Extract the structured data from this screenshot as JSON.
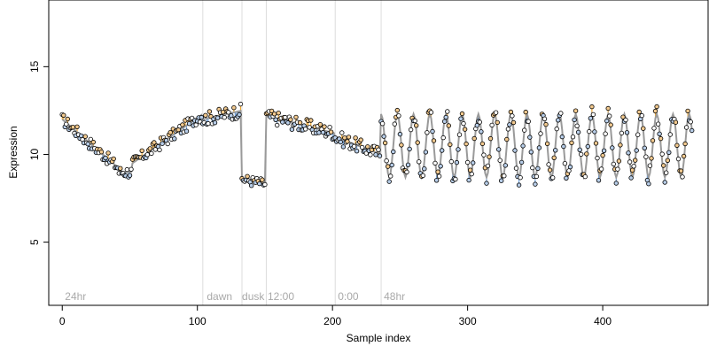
{
  "chart_data": {
    "type": "scatter",
    "title": "",
    "xlabel": "Sample index",
    "ylabel": "Expression",
    "xlim": [
      -10,
      478
    ],
    "ylim": [
      1.4,
      18.8
    ],
    "x_ticks": [
      0,
      100,
      200,
      300,
      400
    ],
    "y_ticks": [
      5,
      10,
      15
    ],
    "grid": false,
    "legend": "none",
    "colors": {
      "points_fill": "#ffffff",
      "points_stroke": "#000000",
      "points_above_fill": "#f2c98e",
      "points_below_fill": "#b7cde8",
      "trend_line": "#9a9a9a",
      "bar_above": "#f0a830",
      "bar_below": "#6f9fd8",
      "annotation": "#a9a9a9",
      "vline": "#dddddd"
    },
    "vlines": [
      104,
      133,
      151,
      202,
      236
    ],
    "annotations": [
      {
        "x": 2,
        "label": "24hr"
      },
      {
        "x": 107,
        "label": "dawn"
      },
      {
        "x": 133,
        "label": "dusk"
      },
      {
        "x": 152,
        "label": "12:00"
      },
      {
        "x": 204,
        "label": "0:00"
      },
      {
        "x": 238,
        "label": "48hr"
      }
    ],
    "segments": [
      {
        "x": [
          0,
          42
        ],
        "y": [
          12.0,
          9.2
        ],
        "noise": 0.35,
        "step": 6
      },
      {
        "x": [
          42,
          52
        ],
        "y": [
          9.0,
          9.0
        ],
        "noise": 0.35,
        "step": 5
      },
      {
        "x": [
          52,
          104
        ],
        "y": [
          9.5,
          12.3
        ],
        "noise": 0.35,
        "step": 6
      },
      {
        "x": [
          104,
          133
        ],
        "y": [
          12.0,
          12.5
        ],
        "noise": 0.4,
        "step": 6
      },
      {
        "x": [
          133,
          151
        ],
        "y": [
          8.6,
          8.3
        ],
        "noise": 0.3,
        "step": 6
      },
      {
        "x": [
          151,
          202
        ],
        "y": [
          12.2,
          11.2
        ],
        "noise": 0.4,
        "step": 6
      },
      {
        "x": [
          202,
          236
        ],
        "y": [
          11.0,
          10.0
        ],
        "noise": 0.4,
        "step": 6
      }
    ],
    "oscillation": {
      "x": [
        236,
        466
      ],
      "center": 10.5,
      "amplitude": 1.8,
      "period": 12,
      "noise": 0.45
    }
  }
}
